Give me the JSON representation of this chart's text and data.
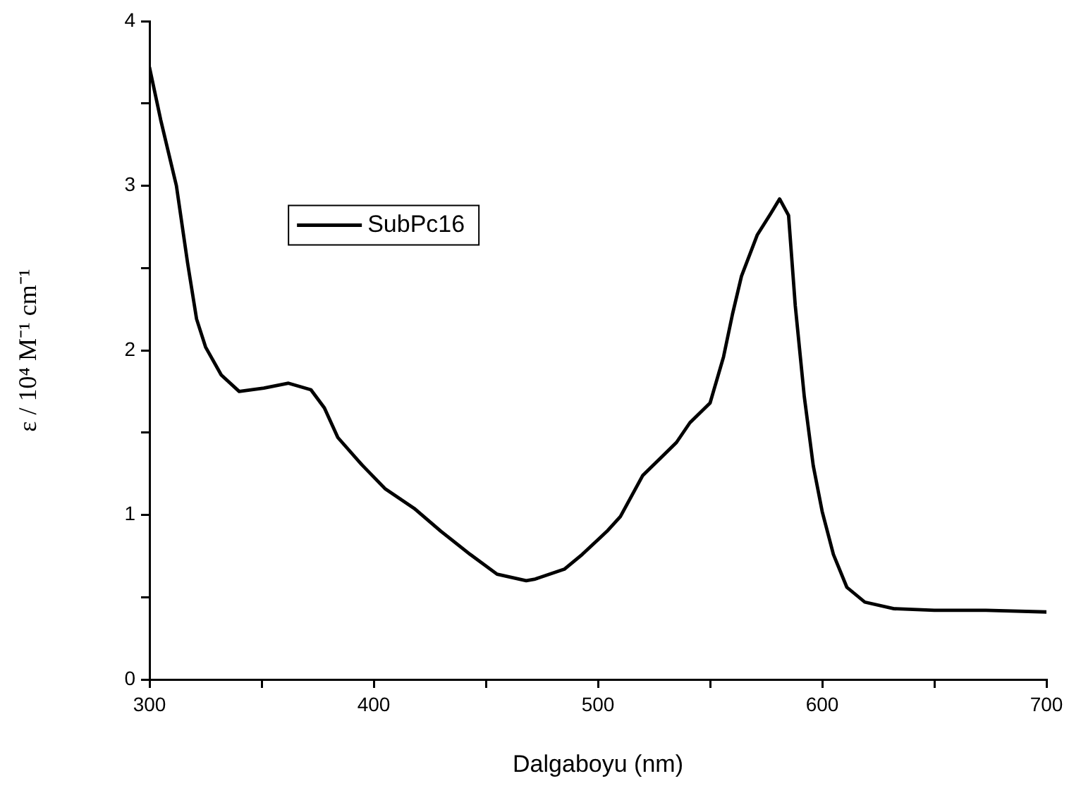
{
  "chart_data": {
    "type": "line",
    "xlabel": "Dalgaboyu (nm)",
    "ylabel": "ε / 10⁴ M⁻¹ cm⁻¹",
    "xlim": [
      300,
      700
    ],
    "xticks": [
      300,
      {
        "value": 350,
        "label": null
      },
      400,
      {
        "value": 450,
        "label": null
      },
      500,
      {
        "value": 550,
        "label": null
      },
      600,
      {
        "value": 650,
        "label": null
      },
      700
    ],
    "ylim": [
      0,
      4
    ],
    "yticks": [
      0,
      {
        "value": 0.5,
        "label": null
      },
      1,
      {
        "value": 1.5,
        "label": null
      },
      2,
      {
        "value": 2.5,
        "label": null
      },
      3,
      {
        "value": 3.5,
        "label": null
      },
      4
    ],
    "grid": false,
    "legend": "top left",
    "marker": "none",
    "line_style": "solid",
    "series": [
      {
        "name": "SubPc16",
        "color": "#000000",
        "x": [
          300,
          305,
          312,
          317,
          321,
          325,
          332,
          340,
          351,
          362,
          372,
          378,
          384,
          395,
          405,
          418,
          430,
          443,
          455,
          468,
          472,
          485,
          493,
          504,
          510,
          520,
          529,
          535,
          541,
          550,
          556,
          560,
          564,
          571,
          577,
          581,
          585,
          588,
          592,
          596,
          600,
          605,
          611,
          619,
          632,
          650,
          673,
          700
        ],
        "values": [
          3.72,
          3.4,
          3.0,
          2.53,
          2.19,
          2.02,
          1.85,
          1.75,
          1.77,
          1.8,
          1.76,
          1.65,
          1.47,
          1.3,
          1.16,
          1.04,
          0.9,
          0.76,
          0.64,
          0.6,
          0.61,
          0.67,
          0.76,
          0.9,
          0.99,
          1.24,
          1.36,
          1.44,
          1.56,
          1.68,
          1.96,
          2.22,
          2.45,
          2.7,
          2.83,
          2.92,
          2.82,
          2.27,
          1.72,
          1.3,
          1.02,
          0.76,
          0.56,
          0.47,
          0.43,
          0.42,
          0.42,
          0.41
        ]
      }
    ]
  }
}
